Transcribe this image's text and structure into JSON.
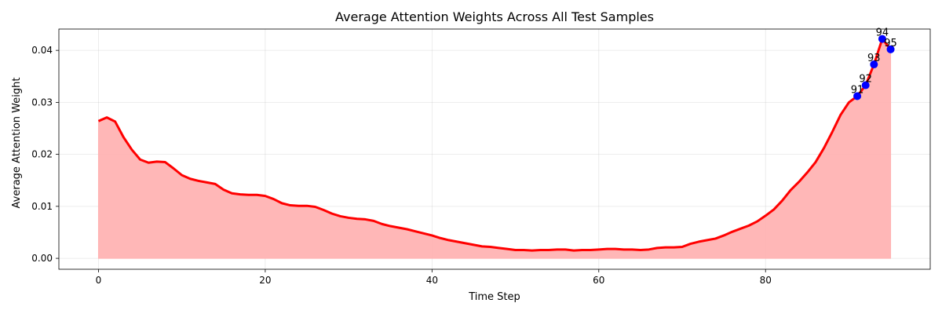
{
  "chart_data": {
    "type": "area",
    "title": "Average Attention Weights Across All Test Samples",
    "xlabel": "Time Step",
    "ylabel": "Average Attention Weight",
    "xlim": [
      -4.75,
      99.75
    ],
    "ylim": [
      -0.0021,
      0.0441
    ],
    "xticks": [
      0,
      20,
      40,
      60,
      80
    ],
    "yticks": [
      0.0,
      0.01,
      0.02,
      0.03,
      0.04
    ],
    "ytick_labels": [
      "0.00",
      "0.01",
      "0.02",
      "0.03",
      "0.04"
    ],
    "grid": true,
    "colors": {
      "line": "#ff0000",
      "fill": "#ffb3b3",
      "marker": "#0000ff"
    },
    "x": [
      0,
      1,
      2,
      3,
      4,
      5,
      6,
      7,
      8,
      9,
      10,
      11,
      12,
      13,
      14,
      15,
      16,
      17,
      18,
      19,
      20,
      21,
      22,
      23,
      24,
      25,
      26,
      27,
      28,
      29,
      30,
      31,
      32,
      33,
      34,
      35,
      36,
      37,
      38,
      39,
      40,
      41,
      42,
      43,
      44,
      45,
      46,
      47,
      48,
      49,
      50,
      51,
      52,
      53,
      54,
      55,
      56,
      57,
      58,
      59,
      60,
      61,
      62,
      63,
      64,
      65,
      66,
      67,
      68,
      69,
      70,
      71,
      72,
      73,
      74,
      75,
      76,
      77,
      78,
      79,
      80,
      81,
      82,
      83,
      84,
      85,
      86,
      87,
      88,
      89,
      90,
      91,
      92,
      93,
      94,
      95
    ],
    "y": [
      0.0264,
      0.0271,
      0.0263,
      0.0233,
      0.0209,
      0.019,
      0.0184,
      0.0186,
      0.0185,
      0.0173,
      0.016,
      0.0153,
      0.0149,
      0.0146,
      0.0143,
      0.0132,
      0.0125,
      0.0123,
      0.0122,
      0.0122,
      0.012,
      0.0114,
      0.0106,
      0.0102,
      0.0101,
      0.0101,
      0.0099,
      0.0093,
      0.0086,
      0.0081,
      0.0078,
      0.0076,
      0.0075,
      0.0072,
      0.0066,
      0.0062,
      0.0059,
      0.0056,
      0.0052,
      0.0048,
      0.0044,
      0.0039,
      0.0035,
      0.0032,
      0.0029,
      0.0026,
      0.0023,
      0.0022,
      0.002,
      0.0018,
      0.0016,
      0.0016,
      0.0015,
      0.0016,
      0.0016,
      0.0017,
      0.0017,
      0.0015,
      0.0016,
      0.0016,
      0.0017,
      0.0018,
      0.0018,
      0.0017,
      0.0017,
      0.0016,
      0.0017,
      0.002,
      0.0021,
      0.0021,
      0.0022,
      0.0028,
      0.0032,
      0.0035,
      0.0038,
      0.0044,
      0.0051,
      0.0057,
      0.0063,
      0.0071,
      0.0082,
      0.0094,
      0.0111,
      0.0131,
      0.0147,
      0.0165,
      0.0185,
      0.0212,
      0.0243,
      0.0276,
      0.03,
      0.0312,
      0.0333,
      0.0373,
      0.0422,
      0.0402
    ],
    "annotations": [
      {
        "x": 91,
        "y": 0.0312,
        "label": "91"
      },
      {
        "x": 92,
        "y": 0.0333,
        "label": "92"
      },
      {
        "x": 93,
        "y": 0.0373,
        "label": "93"
      },
      {
        "x": 94,
        "y": 0.0422,
        "label": "94"
      },
      {
        "x": 95,
        "y": 0.0402,
        "label": "95"
      }
    ]
  }
}
